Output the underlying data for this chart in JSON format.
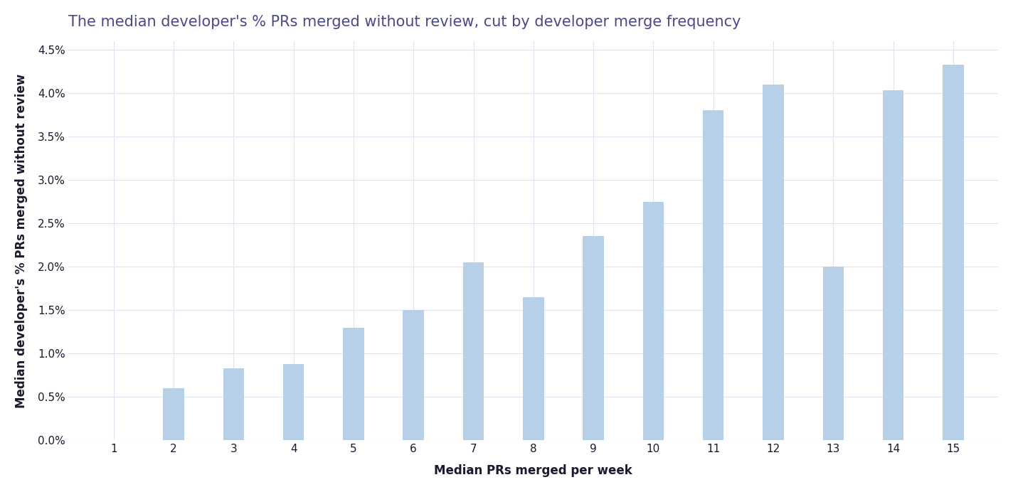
{
  "title": "The median developer's % PRs merged without review, cut by developer merge frequency",
  "xlabel": "Median PRs merged per week",
  "ylabel": "Median developer's % PRs merged without review",
  "x_values": [
    1,
    2,
    3,
    4,
    5,
    6,
    7,
    8,
    9,
    10,
    11,
    12,
    13,
    14,
    15
  ],
  "y_values": [
    0.0,
    0.006,
    0.0083,
    0.0088,
    0.013,
    0.015,
    0.0205,
    0.0165,
    0.0235,
    0.0275,
    0.038,
    0.041,
    0.02,
    0.0403,
    0.0433
  ],
  "bar_color": "#b8cfe8",
  "bar_width": 0.35,
  "ylim": [
    0,
    0.046
  ],
  "yticks": [
    0.0,
    0.005,
    0.01,
    0.015,
    0.02,
    0.025,
    0.03,
    0.035,
    0.04,
    0.045
  ],
  "title_color": "#4a4a8a",
  "label_color": "#1a1a2e",
  "tick_color": "#1a1a2e",
  "background_color": "#ffffff",
  "plot_bg_color": "#ffffff",
  "grid_color": "#dde3f0",
  "title_fontsize": 15,
  "label_fontsize": 12,
  "tick_fontsize": 11
}
